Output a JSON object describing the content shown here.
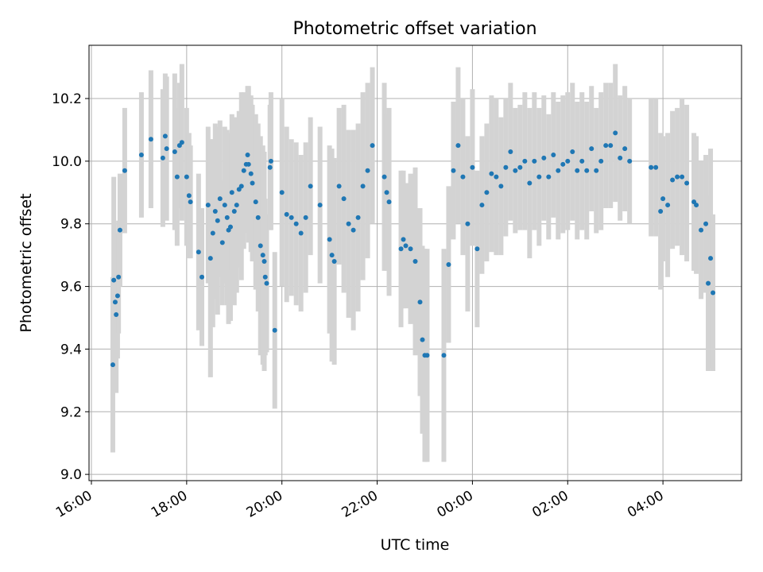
{
  "chart_data": {
    "type": "scatter",
    "title": "Photometric offset variation",
    "xlabel": "UTC time",
    "ylabel": "Photometric offset",
    "x_unit": "hours since 16:00 UTC",
    "xlim": [
      -0.05,
      13.65
    ],
    "ylim": [
      8.98,
      10.37
    ],
    "x_ticks": [
      {
        "value": 0,
        "label": "16:00"
      },
      {
        "value": 2,
        "label": "18:00"
      },
      {
        "value": 4,
        "label": "20:00"
      },
      {
        "value": 6,
        "label": "22:00"
      },
      {
        "value": 8,
        "label": "00:00"
      },
      {
        "value": 10,
        "label": "02:00"
      },
      {
        "value": 12,
        "label": "04:00"
      }
    ],
    "y_ticks": [
      {
        "value": 9.0,
        "label": "9.0"
      },
      {
        "value": 9.2,
        "label": "9.2"
      },
      {
        "value": 9.4,
        "label": "9.4"
      },
      {
        "value": 9.6,
        "label": "9.6"
      },
      {
        "value": 9.8,
        "label": "9.8"
      },
      {
        "value": 10.0,
        "label": "10.0"
      },
      {
        "value": 10.2,
        "label": "10.2"
      }
    ],
    "grid": true,
    "point_color": "#1f77b4",
    "errorbar_color": "#d3d3d3",
    "points": [
      [
        0.45,
        9.35,
        0.28
      ],
      [
        0.47,
        9.62,
        0.33
      ],
      [
        0.5,
        9.55,
        0.22
      ],
      [
        0.52,
        9.51,
        0.25
      ],
      [
        0.55,
        9.57,
        0.2
      ],
      [
        0.57,
        9.63,
        0.18
      ],
      [
        0.6,
        9.78,
        0.18
      ],
      [
        0.7,
        9.97,
        0.2
      ],
      [
        1.05,
        10.02,
        0.2
      ],
      [
        1.25,
        10.07,
        0.22
      ],
      [
        1.5,
        10.01,
        0.22
      ],
      [
        1.55,
        10.08,
        0.2
      ],
      [
        1.58,
        10.04,
        0.23
      ],
      [
        1.75,
        10.03,
        0.25
      ],
      [
        1.8,
        9.95,
        0.22
      ],
      [
        1.85,
        10.05,
        0.2
      ],
      [
        1.9,
        10.06,
        0.25
      ],
      [
        2.0,
        9.95,
        0.22
      ],
      [
        2.05,
        9.89,
        0.2
      ],
      [
        2.08,
        9.87,
        0.18
      ],
      [
        2.25,
        9.71,
        0.25
      ],
      [
        2.32,
        9.63,
        0.22
      ],
      [
        2.45,
        9.86,
        0.25
      ],
      [
        2.5,
        9.69,
        0.38
      ],
      [
        2.55,
        9.77,
        0.3
      ],
      [
        2.6,
        9.84,
        0.28
      ],
      [
        2.65,
        9.81,
        0.3
      ],
      [
        2.7,
        9.88,
        0.25
      ],
      [
        2.75,
        9.74,
        0.2
      ],
      [
        2.8,
        9.86,
        0.25
      ],
      [
        2.85,
        9.82,
        0.28
      ],
      [
        2.88,
        9.78,
        0.3
      ],
      [
        2.92,
        9.79,
        0.3
      ],
      [
        2.95,
        9.9,
        0.25
      ],
      [
        3.0,
        9.84,
        0.3
      ],
      [
        3.05,
        9.86,
        0.28
      ],
      [
        3.1,
        9.91,
        0.25
      ],
      [
        3.15,
        9.92,
        0.3
      ],
      [
        3.2,
        9.97,
        0.25
      ],
      [
        3.25,
        9.99,
        0.22
      ],
      [
        3.28,
        10.02,
        0.22
      ],
      [
        3.3,
        9.99,
        0.25
      ],
      [
        3.35,
        9.96,
        0.25
      ],
      [
        3.38,
        9.93,
        0.25
      ],
      [
        3.45,
        9.87,
        0.28
      ],
      [
        3.5,
        9.82,
        0.3
      ],
      [
        3.55,
        9.73,
        0.35
      ],
      [
        3.6,
        9.7,
        0.35
      ],
      [
        3.63,
        9.68,
        0.35
      ],
      [
        3.65,
        9.63,
        0.25
      ],
      [
        3.68,
        9.61,
        0.22
      ],
      [
        3.85,
        9.46,
        0.25
      ],
      [
        3.75,
        9.98,
        0.2
      ],
      [
        3.77,
        10.0,
        0.22
      ],
      [
        4.0,
        9.9,
        0.3
      ],
      [
        4.1,
        9.83,
        0.28
      ],
      [
        4.2,
        9.82,
        0.25
      ],
      [
        4.3,
        9.8,
        0.26
      ],
      [
        4.4,
        9.77,
        0.25
      ],
      [
        4.5,
        9.82,
        0.24
      ],
      [
        4.6,
        9.92,
        0.22
      ],
      [
        4.8,
        9.86,
        0.25
      ],
      [
        5.0,
        9.75,
        0.3
      ],
      [
        5.05,
        9.7,
        0.34
      ],
      [
        5.1,
        9.68,
        0.33
      ],
      [
        5.2,
        9.92,
        0.25
      ],
      [
        5.3,
        9.88,
        0.3
      ],
      [
        5.4,
        9.8,
        0.3
      ],
      [
        5.5,
        9.78,
        0.32
      ],
      [
        5.6,
        9.82,
        0.3
      ],
      [
        5.7,
        9.92,
        0.3
      ],
      [
        5.8,
        9.97,
        0.28
      ],
      [
        5.9,
        10.05,
        0.25
      ],
      [
        6.15,
        9.95,
        0.3
      ],
      [
        6.2,
        9.9,
        0.25
      ],
      [
        6.25,
        9.87,
        0.3
      ],
      [
        6.5,
        9.72,
        0.25
      ],
      [
        6.55,
        9.75,
        0.22
      ],
      [
        6.6,
        9.73,
        0.2
      ],
      [
        6.7,
        9.72,
        0.24
      ],
      [
        6.8,
        9.68,
        0.3
      ],
      [
        6.9,
        9.55,
        0.3
      ],
      [
        6.95,
        9.43,
        0.3
      ],
      [
        7.0,
        9.38,
        0.34
      ],
      [
        7.05,
        9.38,
        0.34
      ],
      [
        7.4,
        9.38,
        0.34
      ],
      [
        7.5,
        9.67,
        0.25
      ],
      [
        7.6,
        9.97,
        0.22
      ],
      [
        7.7,
        10.05,
        0.25
      ],
      [
        7.8,
        9.95,
        0.25
      ],
      [
        7.9,
        9.8,
        0.28
      ],
      [
        8.0,
        9.98,
        0.25
      ],
      [
        8.1,
        9.72,
        0.25
      ],
      [
        8.2,
        9.86,
        0.22
      ],
      [
        8.3,
        9.9,
        0.22
      ],
      [
        8.4,
        9.96,
        0.25
      ],
      [
        8.5,
        9.95,
        0.25
      ],
      [
        8.6,
        9.92,
        0.22
      ],
      [
        8.7,
        9.98,
        0.22
      ],
      [
        8.8,
        10.03,
        0.22
      ],
      [
        8.9,
        9.97,
        0.2
      ],
      [
        9.0,
        9.98,
        0.2
      ],
      [
        9.1,
        10.0,
        0.22
      ],
      [
        9.2,
        9.93,
        0.24
      ],
      [
        9.3,
        10.0,
        0.22
      ],
      [
        9.4,
        9.95,
        0.22
      ],
      [
        9.5,
        10.01,
        0.2
      ],
      [
        9.6,
        9.95,
        0.2
      ],
      [
        9.7,
        10.02,
        0.2
      ],
      [
        9.8,
        9.97,
        0.22
      ],
      [
        9.9,
        9.99,
        0.22
      ],
      [
        10.0,
        10.0,
        0.22
      ],
      [
        10.1,
        10.03,
        0.22
      ],
      [
        10.2,
        9.97,
        0.22
      ],
      [
        10.3,
        10.0,
        0.22
      ],
      [
        10.4,
        9.97,
        0.22
      ],
      [
        10.5,
        10.04,
        0.2
      ],
      [
        10.6,
        9.97,
        0.2
      ],
      [
        10.7,
        10.0,
        0.22
      ],
      [
        10.8,
        10.05,
        0.2
      ],
      [
        10.9,
        10.05,
        0.2
      ],
      [
        11.0,
        10.09,
        0.22
      ],
      [
        11.1,
        10.01,
        0.2
      ],
      [
        11.2,
        10.04,
        0.2
      ],
      [
        11.3,
        10.0,
        0.2
      ],
      [
        11.75,
        9.98,
        0.22
      ],
      [
        11.85,
        9.98,
        0.22
      ],
      [
        11.95,
        9.84,
        0.25
      ],
      [
        12.0,
        9.88,
        0.2
      ],
      [
        12.1,
        9.86,
        0.23
      ],
      [
        12.2,
        9.94,
        0.22
      ],
      [
        12.3,
        9.95,
        0.22
      ],
      [
        12.4,
        9.95,
        0.25
      ],
      [
        12.5,
        9.93,
        0.25
      ],
      [
        12.65,
        9.87,
        0.22
      ],
      [
        12.7,
        9.86,
        0.22
      ],
      [
        12.8,
        9.78,
        0.22
      ],
      [
        12.9,
        9.8,
        0.22
      ],
      [
        12.95,
        9.61,
        0.28
      ],
      [
        13.0,
        9.69,
        0.35
      ],
      [
        13.05,
        9.58,
        0.25
      ]
    ]
  }
}
